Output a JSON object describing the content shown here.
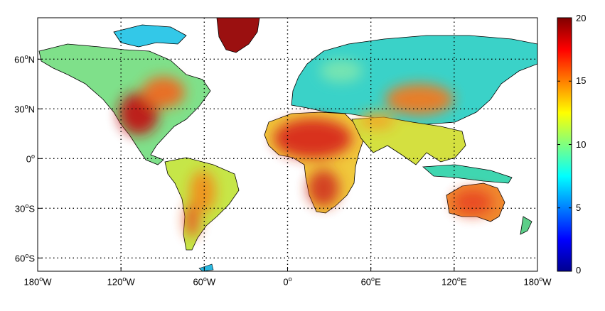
{
  "map": {
    "x_ticks": [
      {
        "lon": -180,
        "num": "180",
        "hemi": "W"
      },
      {
        "lon": -120,
        "num": "120",
        "hemi": "W"
      },
      {
        "lon": -60,
        "num": "60",
        "hemi": "W"
      },
      {
        "lon": 0,
        "num": "0",
        "hemi": ""
      },
      {
        "lon": 60,
        "num": "60",
        "hemi": "E"
      },
      {
        "lon": 120,
        "num": "120",
        "hemi": "E"
      },
      {
        "lon": 180,
        "num": "180",
        "hemi": "W"
      }
    ],
    "y_ticks": [
      {
        "lat": 60,
        "num": "60",
        "hemi": "N"
      },
      {
        "lat": 30,
        "num": "30",
        "hemi": "N"
      },
      {
        "lat": 0,
        "num": "0",
        "hemi": ""
      },
      {
        "lat": -30,
        "num": "30",
        "hemi": "S"
      },
      {
        "lat": -60,
        "num": "60",
        "hemi": "S"
      }
    ],
    "lon_range": [
      -180,
      180
    ],
    "lat_range": [
      -68,
      85
    ],
    "grid": "dotted"
  },
  "colorbar": {
    "min": 0,
    "max": 20,
    "ticks": [
      "0",
      "5",
      "10",
      "15",
      "20"
    ],
    "colormap": "jet",
    "colors": [
      "#00008f",
      "#0000ff",
      "#00ffff",
      "#ffff00",
      "#ff0000",
      "#800000"
    ]
  },
  "regions": [
    {
      "id": "north-america",
      "value": 12
    },
    {
      "id": "mexico-southwest",
      "value": 17
    },
    {
      "id": "greenland-top",
      "value": 20
    },
    {
      "id": "south-america",
      "value": 11
    },
    {
      "id": "patagonia",
      "value": 15
    },
    {
      "id": "sahara",
      "value": 16
    },
    {
      "id": "africa-central",
      "value": 11
    },
    {
      "id": "southern-africa",
      "value": 16
    },
    {
      "id": "europe-russia",
      "value": 9
    },
    {
      "id": "central-asia",
      "value": 14
    },
    {
      "id": "india-southeast-asia",
      "value": 12
    },
    {
      "id": "australia",
      "value": 15
    }
  ]
}
